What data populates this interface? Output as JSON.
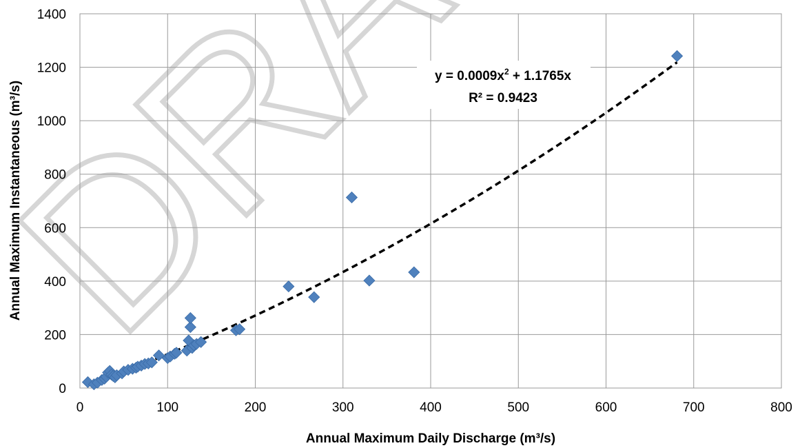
{
  "watermark": "DRAFT",
  "chart_data": {
    "type": "scatter",
    "title": "",
    "xlabel": "Annual Maximum Daily Discharge (m³/s)",
    "ylabel": "Annual Maximum Instantaneous (m³/s)",
    "xlim": [
      0,
      800
    ],
    "ylim": [
      0,
      1400
    ],
    "xticks": [
      0,
      100,
      200,
      300,
      400,
      500,
      600,
      700,
      800
    ],
    "yticks": [
      0,
      200,
      400,
      600,
      800,
      1000,
      1200,
      1400
    ],
    "xtick_labels": [
      "0",
      "100",
      "200",
      "300",
      "400",
      "500",
      "600",
      "700",
      "800"
    ],
    "ytick_labels": [
      "0",
      "200",
      "400",
      "600",
      "800",
      "1000",
      "1200",
      "1400"
    ],
    "grid": true,
    "legend": "none",
    "marker": "diamond",
    "marker_color": "#4f81bd",
    "trendline_color": "#000000",
    "series": [
      {
        "points": [
          [
            9,
            22
          ],
          [
            16,
            14
          ],
          [
            20,
            20
          ],
          [
            25,
            30
          ],
          [
            28,
            35
          ],
          [
            30,
            42
          ],
          [
            32,
            58
          ],
          [
            34,
            64
          ],
          [
            36,
            50
          ],
          [
            38,
            45
          ],
          [
            40,
            40
          ],
          [
            42,
            48
          ],
          [
            48,
            55
          ],
          [
            50,
            62
          ],
          [
            55,
            68
          ],
          [
            60,
            72
          ],
          [
            64,
            76
          ],
          [
            66,
            80
          ],
          [
            70,
            84
          ],
          [
            74,
            90
          ],
          [
            78,
            92
          ],
          [
            82,
            96
          ],
          [
            90,
            122
          ],
          [
            100,
            112
          ],
          [
            103,
            118
          ],
          [
            108,
            128
          ],
          [
            110,
            132
          ],
          [
            122,
            140
          ],
          [
            124,
            178
          ],
          [
            126,
            228
          ],
          [
            126,
            262
          ],
          [
            128,
            150
          ],
          [
            130,
            160
          ],
          [
            133,
            165
          ],
          [
            138,
            172
          ],
          [
            178,
            216
          ],
          [
            182,
            220
          ],
          [
            238,
            380
          ],
          [
            267,
            340
          ],
          [
            310,
            713
          ],
          [
            330,
            402
          ],
          [
            381,
            433
          ],
          [
            681,
            1242
          ]
        ]
      }
    ],
    "trendline": {
      "type": "polynomial",
      "order": 2,
      "a": 0.0009,
      "b": 1.1765,
      "x_range": [
        9,
        681
      ],
      "equation_line1": "y = 0.0009x",
      "equation_sup": "2",
      "equation_line1_rest": " + 1.1765x",
      "equation_line2": "R² = 0.9423"
    }
  }
}
